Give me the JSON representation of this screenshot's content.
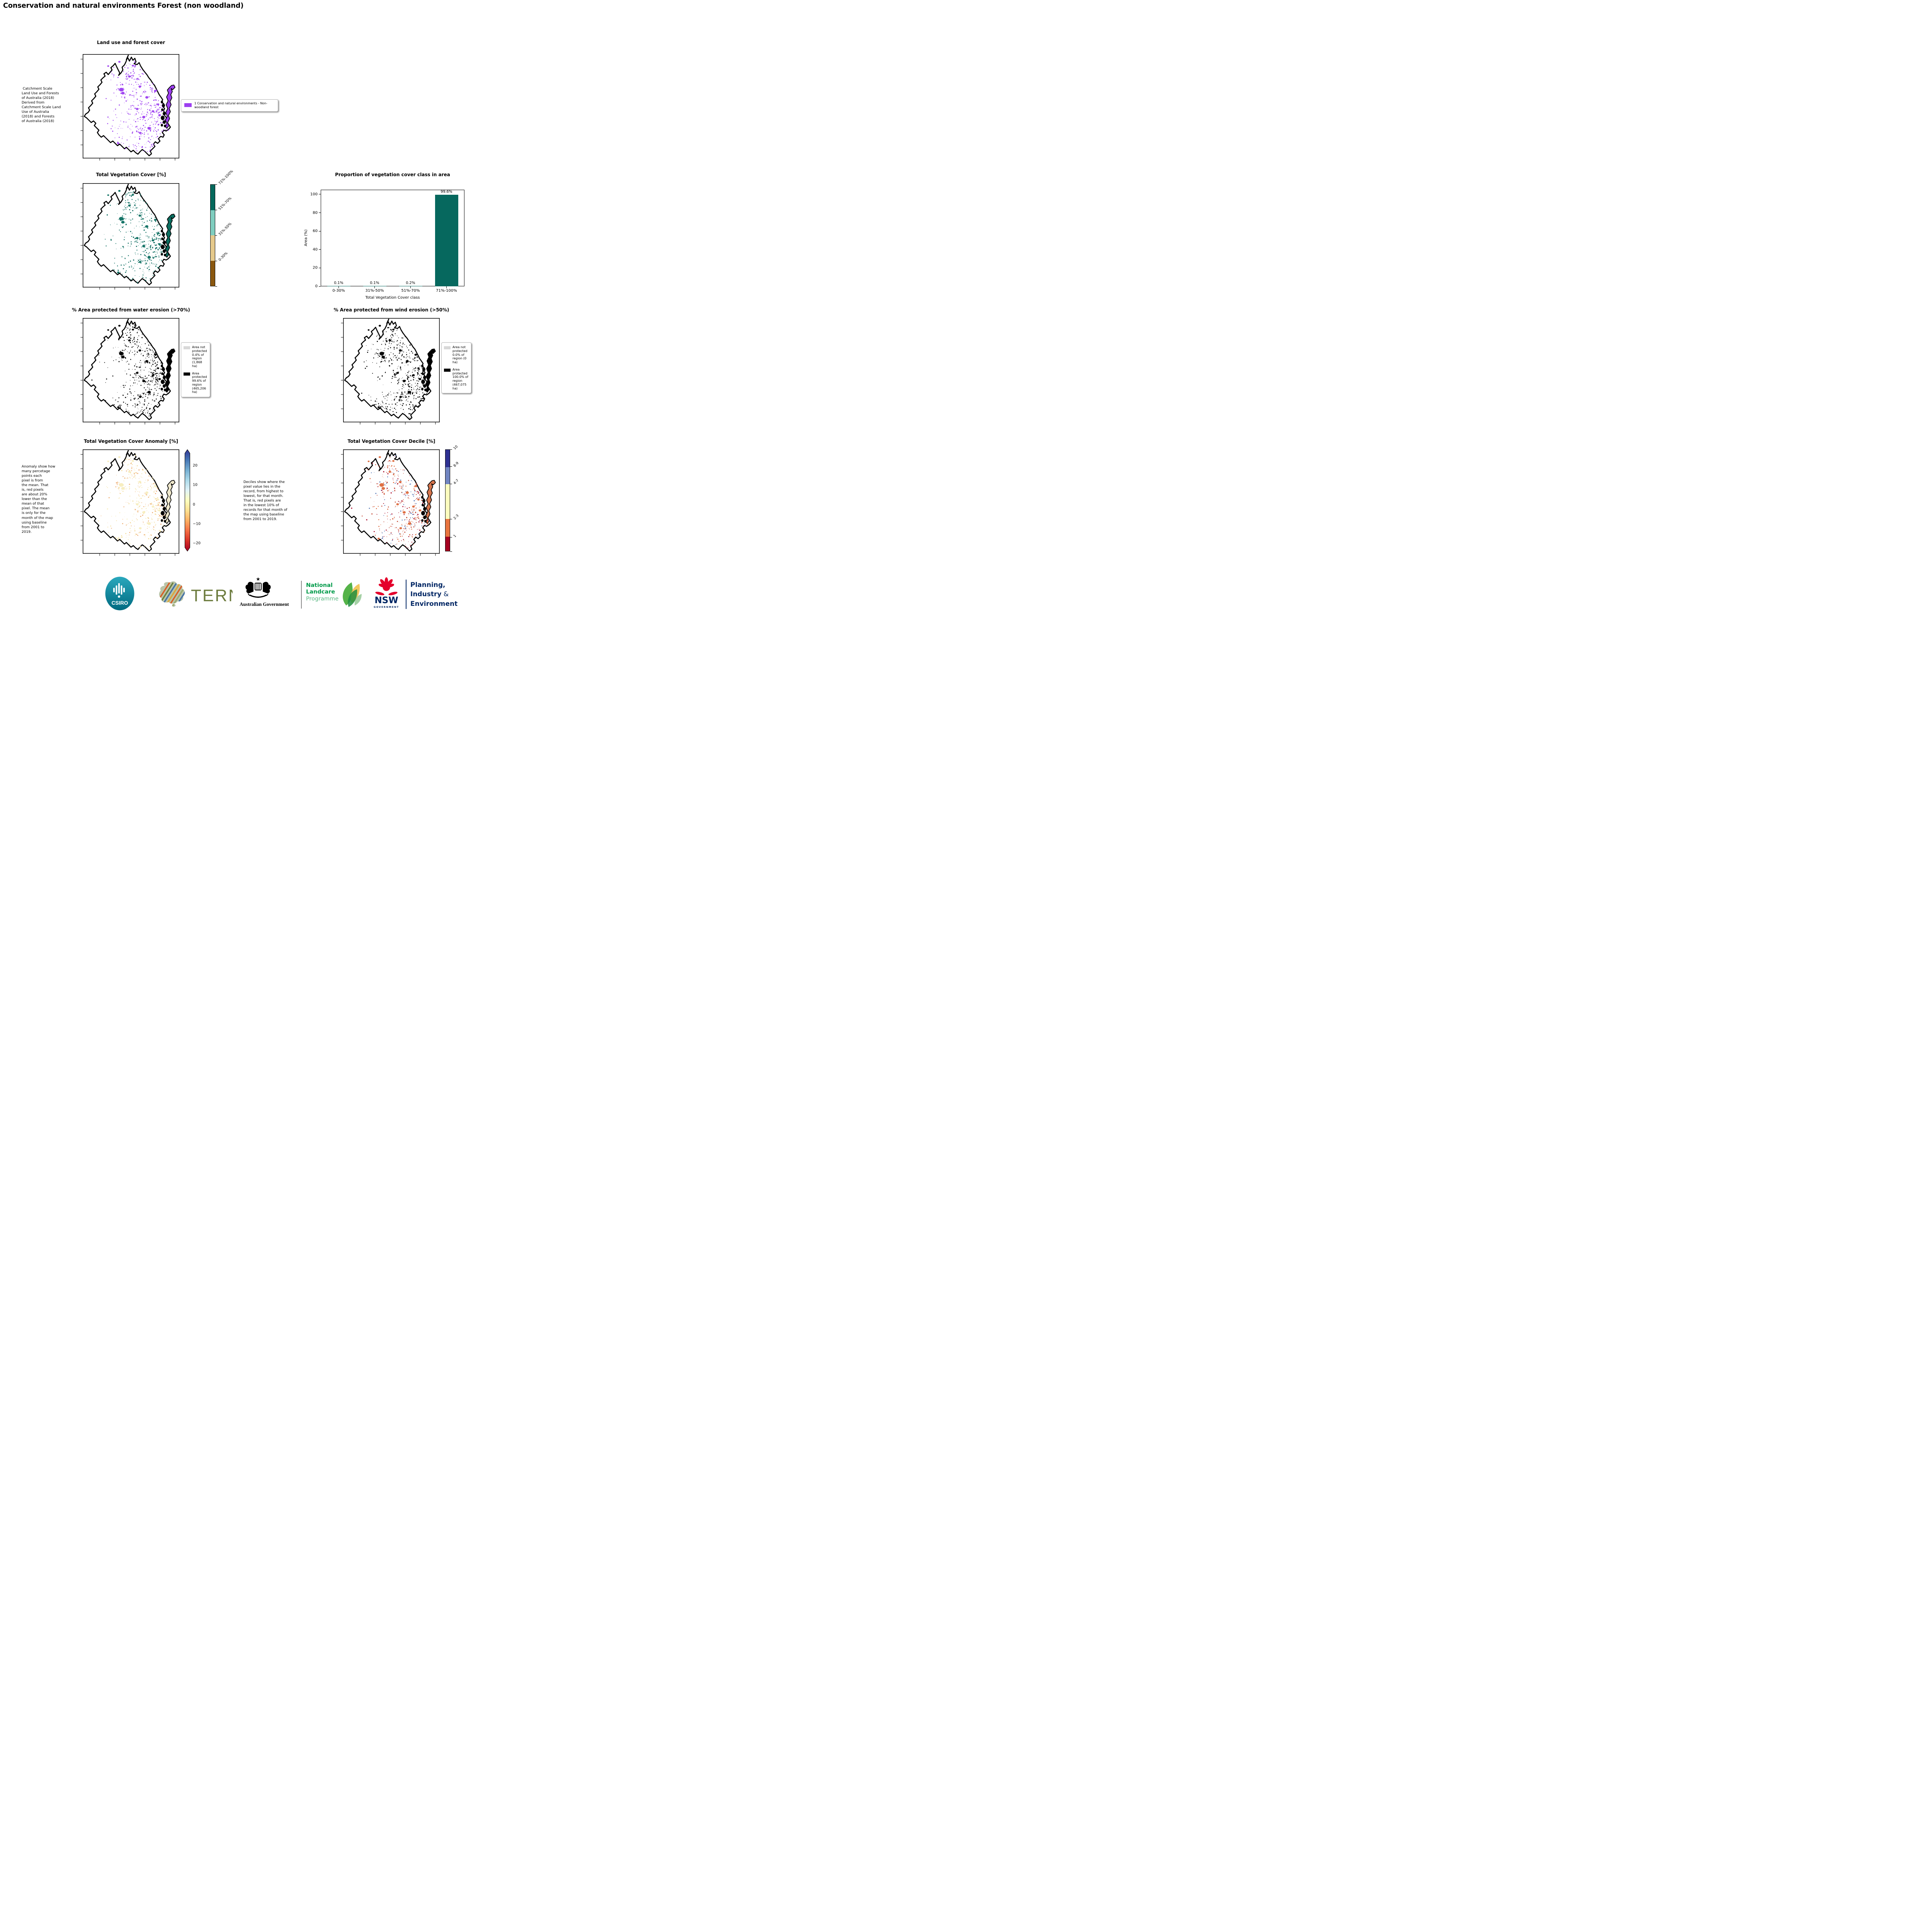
{
  "page_title": "Conservation and natural environments Forest (non woodland)",
  "land_use": {
    "title": "Land use and forest cover",
    "note": " Catchment Scale\nLand Use and Forests\nof Australia (2018)\nDerived from\nCatchment Scale Land\nUse of Australia\n(2018) and Forests\nof Australia (2018)",
    "legend_label": "1 Conservation and natural environments - Non-\nwoodland forest",
    "legend_color": "#9d3ff0"
  },
  "veg_cover": {
    "title": "Total Vegetation Cover [%]",
    "colorbar": {
      "labels": [
        "71%-100%",
        "51%-70%",
        "31%-50%",
        "0-30%"
      ],
      "colors": [
        "#04685c",
        "#7fcdbf",
        "#e5c98b",
        "#8a570f"
      ]
    }
  },
  "chart_data": {
    "type": "bar",
    "title": "Proportion of vegetation cover class in area",
    "categories": [
      "0-30%",
      "31%-50%",
      "51%-70%",
      "71%-100%"
    ],
    "values": [
      0.1,
      0.1,
      0.2,
      99.6
    ],
    "value_labels": [
      "0.1%",
      "0.1%",
      "0.2%",
      "99.6%"
    ],
    "xlabel": "Total Vegetation Cover class",
    "ylabel": "Area (%)",
    "ylim": [
      0,
      105
    ],
    "yticks": [
      0,
      20,
      40,
      60,
      80,
      100
    ],
    "bar_color": "#06685e",
    "grid": false,
    "legend_position": "none"
  },
  "water_erosion": {
    "title": "% Area protected from water erosion (>70%)",
    "legend": [
      {
        "color": "#d8d8d8",
        "label": "Area not\nprotected\n0.4% of\nregion\n(1,868 ha)"
      },
      {
        "color": "#000000",
        "label": "Area\nprotected\n99.6% of\nregion\n(465,206\nha)"
      }
    ]
  },
  "wind_erosion": {
    "title": "% Area protected from wind erosion (>50%)",
    "legend": [
      {
        "color": "#d8d8d8",
        "label": "Area not\nprotected\n0.0% of\nregion (0\nha)"
      },
      {
        "color": "#000000",
        "label": "Area\nprotected\n100.0% of\nregion\n(467,075\nha)"
      }
    ]
  },
  "anomaly": {
    "title": "Total Vegetation Cover Anomaly [%]",
    "note": "Anomaly show how\nmany percetage\npoints each\npixel is from\nthe mean. That\nis, red pixels\nare about 20%\nlower than the\nmean of that\npixel. The mean\nis only for the\nmonth of the map\nusing baseline\nfrom 2001 to\n2019.",
    "colorbar_ticks": [
      "20",
      "10",
      "0",
      "−10",
      "−20"
    ]
  },
  "decile": {
    "title": "Total Vegetation Cover Decile [%]",
    "note": "Deciles show where the\npixel value lies in the\nrecord, from highest to\nlowest, for that month.\nThat is, red pixels are\nin the lowest 10% of\nrecords for that month of\nthe map using baseline\nfrom 2001 to 2019.",
    "colorbar": {
      "labels": [
        "10",
        "8-9",
        "4-7",
        "2-3",
        "1"
      ],
      "colors": [
        "#2e3192",
        "#7185c1",
        "#fdfdbe",
        "#e8743f",
        "#a50021"
      ]
    }
  },
  "footer": {
    "csiro": "CSIRO",
    "tern": "TERN",
    "aus_gov": "Australian Government",
    "landcare_1": "National",
    "landcare_2": "Landcare",
    "landcare_3": "Programme",
    "nsw": "NSW",
    "nsw_sub": "GOVERNMENT",
    "dept_1": "Planning,",
    "dept_2": "Industry",
    "dept_2_amp": " &",
    "dept_3": "Environment"
  }
}
